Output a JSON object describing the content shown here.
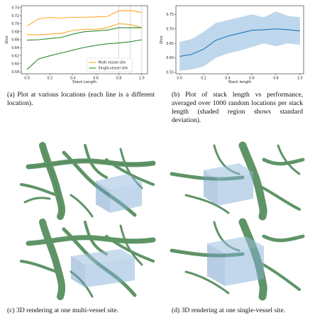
{
  "chart_data": [
    {
      "type": "line",
      "title": "",
      "xlabel": "Stack Length",
      "ylabel": "Dice",
      "xlim": [
        -0.05,
        1.05
      ],
      "ylim": [
        0.575,
        0.745
      ],
      "xticks": [
        "0.0",
        "0.2",
        "0.4",
        "0.6",
        "0.8",
        "1.0"
      ],
      "yticks": [
        "0.58",
        "0.60",
        "0.62",
        "0.64",
        "0.66",
        "0.68",
        "0.70",
        "0.72",
        "0.74"
      ],
      "x": [
        0.0,
        0.1,
        0.2,
        0.3,
        0.4,
        0.5,
        0.6,
        0.7,
        0.8,
        0.9,
        1.0
      ],
      "series": [
        {
          "values": [
            0.694,
            0.712,
            0.716,
            0.714,
            0.716,
            0.716,
            0.717,
            0.718,
            0.732,
            0.733,
            0.728
          ],
          "color": "#ffa726"
        },
        {
          "values": [
            0.673,
            0.672,
            0.674,
            0.676,
            0.683,
            0.686,
            0.686,
            0.69,
            0.7,
            0.698,
            0.69
          ],
          "color": "#ffa726"
        },
        {
          "values": [
            0.659,
            0.66,
            0.663,
            0.666,
            0.674,
            0.68,
            0.682,
            0.684,
            0.69,
            0.69,
            0.69
          ],
          "color": "#2e8b2e"
        },
        {
          "values": [
            0.586,
            0.612,
            0.62,
            0.627,
            0.634,
            0.641,
            0.646,
            0.65,
            0.652,
            0.655,
            0.66
          ],
          "color": "#2e8b2e"
        }
      ],
      "vlines": [
        0.8,
        0.9,
        1.0
      ],
      "legend": {
        "position": "lower-right",
        "items": [
          {
            "label": "Multi vessel site",
            "color": "#ffa726"
          },
          {
            "label": "Single-vessel site",
            "color": "#2e8b2e"
          }
        ]
      },
      "grid": false
    },
    {
      "type": "area",
      "title": "",
      "xlabel": "Stack length",
      "ylabel": "Dice",
      "xlim": [
        -0.03,
        1.03
      ],
      "ylim": [
        0.545,
        0.78
      ],
      "xticks": [
        "0.0",
        "0.2",
        "0.4",
        "0.6",
        "0.8",
        "1.0"
      ],
      "yticks": [
        "0.55",
        "0.60",
        "0.65",
        "0.70",
        "0.75"
      ],
      "x": [
        0.0,
        0.1,
        0.2,
        0.3,
        0.4,
        0.5,
        0.6,
        0.7,
        0.8,
        0.9,
        1.0
      ],
      "series": [
        {
          "values": [
            0.605,
            0.612,
            0.63,
            0.66,
            0.675,
            0.685,
            0.695,
            0.697,
            0.7,
            0.697,
            0.693
          ],
          "upper": [
            0.655,
            0.665,
            0.69,
            0.72,
            0.73,
            0.74,
            0.75,
            0.74,
            0.76,
            0.745,
            0.74
          ],
          "lower": [
            0.555,
            0.56,
            0.57,
            0.6,
            0.615,
            0.625,
            0.637,
            0.65,
            0.64,
            0.65,
            0.645
          ],
          "color": "#1f77b4",
          "band_color": "#a9c9e6"
        }
      ],
      "grid": false
    }
  ],
  "captions": {
    "a": "(a) Plot at various locations (each line is a different location).",
    "b": "(b) Plot of stack length vs performance, averaged over 1000 random locations per stack length (shaded region shows standard deviation).",
    "c": "(c) 3D rendering at one multi-vessel site.",
    "d": "(d) 3D rendering at one single-vessel site."
  },
  "colors": {
    "vessel": "#5f9467",
    "vessel_dark": "#3f6b47",
    "box": "#7aa5cf"
  }
}
